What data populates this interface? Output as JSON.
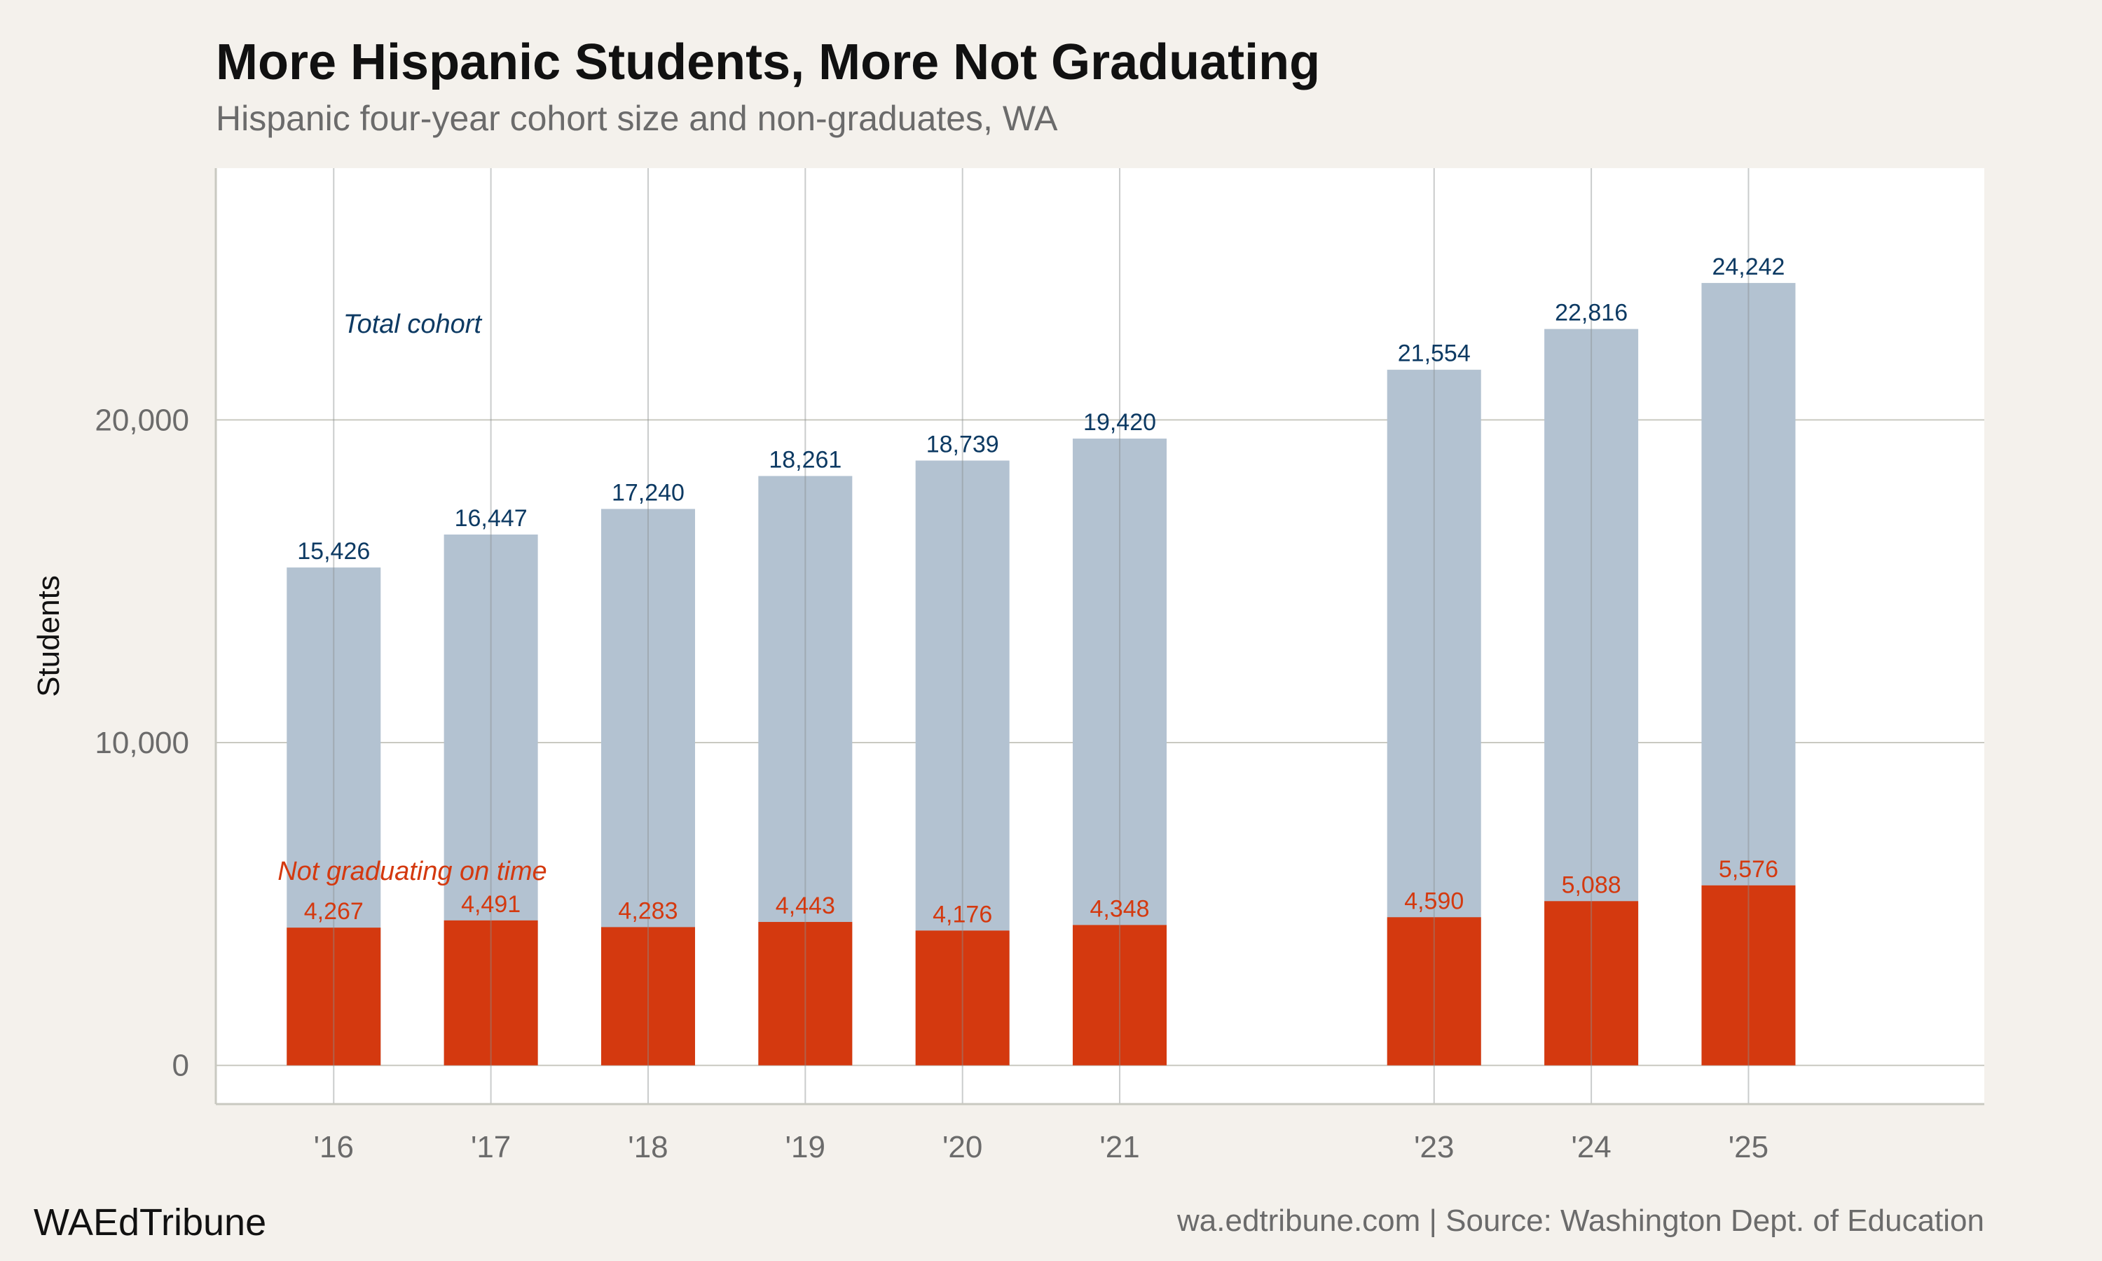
{
  "header": {
    "title": "More Hispanic Students, More Not Graduating",
    "subtitle": "Hispanic four-year cohort size and non-graduates, WA"
  },
  "footer": {
    "brand": "WAEdTribune",
    "source": "wa.edtribune.com | Source: Washington Dept. of Education"
  },
  "colors": {
    "total": "#b3c2d1",
    "total_label": "#0d3a63",
    "not_graduating": "#d4390f",
    "grid": "#c9c9c1",
    "background": "#f4f1ec",
    "plot_background": "#ffffff"
  },
  "chart_data": {
    "type": "bar",
    "title": "More Hispanic Students, More Not Graduating",
    "subtitle": "Hispanic four-year cohort size and non-graduates, WA",
    "ylabel": "Students",
    "xlabel": "",
    "x": [
      2016,
      2017,
      2018,
      2019,
      2020,
      2021,
      2023,
      2024,
      2025
    ],
    "categories": [
      "'16",
      "'17",
      "'18",
      "'19",
      "'20",
      "'21",
      "'23",
      "'24",
      "'25"
    ],
    "xlim": [
      2015.25,
      2026.5
    ],
    "ylim": [
      -1200,
      27800
    ],
    "yticks": [
      0,
      10000,
      20000
    ],
    "ytick_labels": [
      "0",
      "10,000",
      "20,000"
    ],
    "grid": true,
    "series": [
      {
        "name": "Total cohort",
        "values": [
          15426,
          16447,
          17240,
          18261,
          18739,
          19420,
          21554,
          22816,
          24242
        ],
        "labels": [
          "15,426",
          "16,447",
          "17,240",
          "18,261",
          "18,739",
          "19,420",
          "21,554",
          "22,816",
          "24,242"
        ]
      },
      {
        "name": "Not graduating on time",
        "values": [
          4267,
          4491,
          4283,
          4443,
          4176,
          4348,
          4590,
          5088,
          5576
        ],
        "labels": [
          "4,267",
          "4,491",
          "4,283",
          "4,443",
          "4,176",
          "4,348",
          "4,590",
          "5,088",
          "5,576"
        ]
      }
    ],
    "annotations": [
      {
        "text": "Total cohort",
        "x": 2016.5,
        "y": 22700,
        "series": 0
      },
      {
        "text": "Not graduating on time",
        "x": 2016.5,
        "y": 5750,
        "series": 1
      }
    ]
  }
}
